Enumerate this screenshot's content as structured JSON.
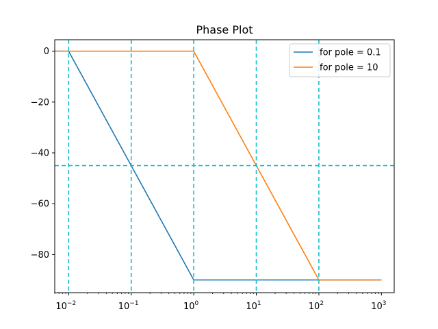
{
  "chart_data": {
    "type": "line",
    "title": "Phase Plot",
    "xlabel": "",
    "ylabel": "",
    "xscale": "log",
    "xlim": [
      0.006,
      1600
    ],
    "ylim": [
      -95,
      4.5
    ],
    "x_ticks": [
      {
        "value": 0.01,
        "base": "10",
        "exp": "−2"
      },
      {
        "value": 0.1,
        "base": "10",
        "exp": "−1"
      },
      {
        "value": 1,
        "base": "10",
        "exp": "0"
      },
      {
        "value": 10,
        "base": "10",
        "exp": "1"
      },
      {
        "value": 100,
        "base": "10",
        "exp": "2"
      },
      {
        "value": 1000,
        "base": "10",
        "exp": "3"
      }
    ],
    "y_ticks": [
      {
        "value": 0,
        "label": "0"
      },
      {
        "value": -20,
        "label": "−20"
      },
      {
        "value": -40,
        "label": "−40"
      },
      {
        "value": -60,
        "label": "−60"
      },
      {
        "value": -80,
        "label": "−80"
      }
    ],
    "grid": false,
    "legend_position": "top-right",
    "series": [
      {
        "name": "for pole = 0.1",
        "color": "#1f77b4",
        "x": [
          0.006,
          0.01,
          1,
          1000
        ],
        "y": [
          0,
          0,
          -90,
          -90
        ]
      },
      {
        "name": "for pole = 10",
        "color": "#ff7f0e",
        "x": [
          0.006,
          1,
          100,
          1000
        ],
        "y": [
          0,
          0,
          -90,
          -90
        ]
      }
    ],
    "reference_lines": {
      "color": "#17becf",
      "style": "dashed",
      "vertical_x": [
        0.01,
        0.1,
        1,
        10,
        100
      ],
      "horizontal_y": [
        -45
      ]
    }
  }
}
